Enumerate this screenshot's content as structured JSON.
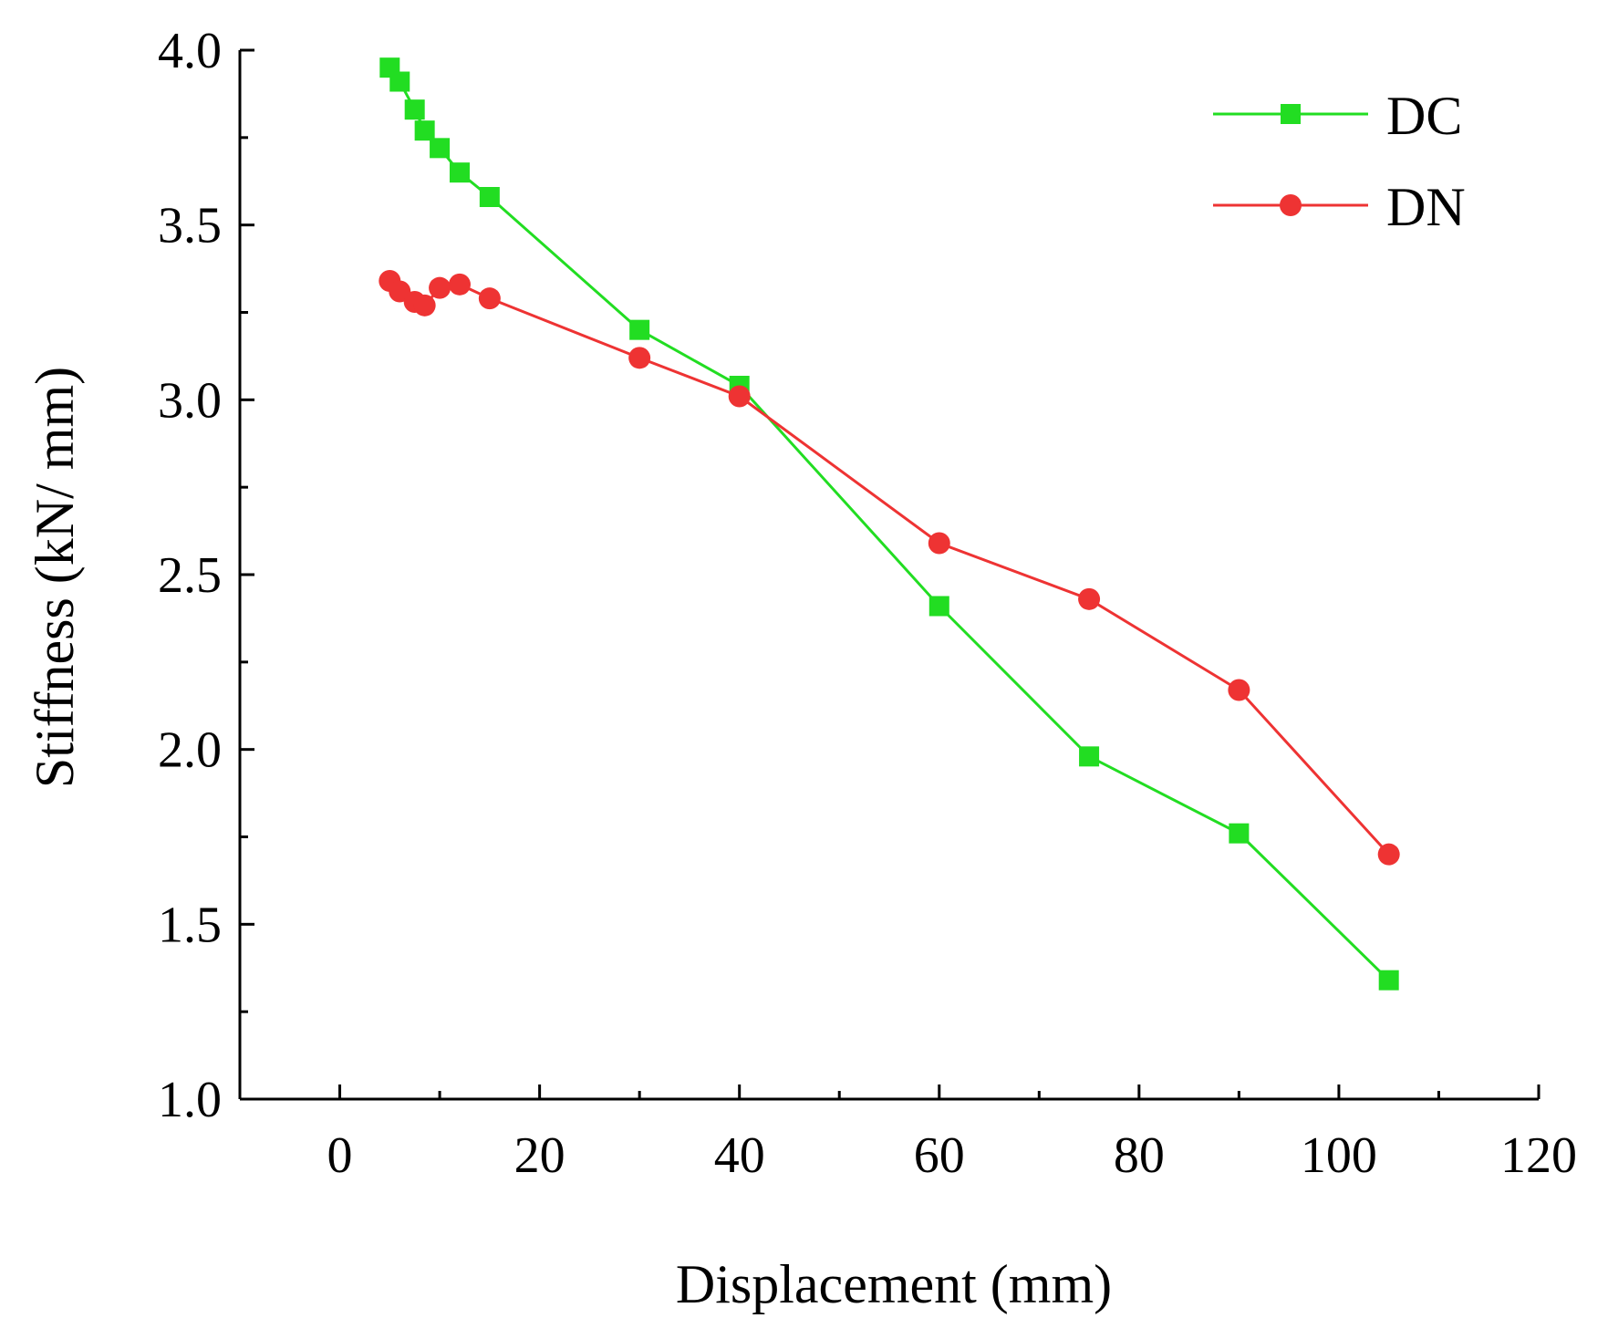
{
  "chart_data": {
    "type": "line",
    "title": "",
    "xlabel": "Displacement (mm)",
    "ylabel": "Stiffness (kN/ mm)",
    "xlim": [
      -10,
      120
    ],
    "ylim": [
      1.0,
      4.0
    ],
    "xticks": [
      0,
      20,
      40,
      60,
      80,
      100,
      120
    ],
    "xtick_labels": [
      "0",
      "20",
      "40",
      "60",
      "80",
      "100",
      "120"
    ],
    "xminor": [
      -10,
      10,
      30,
      50,
      70,
      90,
      110
    ],
    "yticks": [
      1.0,
      1.5,
      2.0,
      2.5,
      3.0,
      3.5,
      4.0
    ],
    "ytick_labels": [
      "1.0",
      "1.5",
      "2.0",
      "2.5",
      "3.0",
      "3.5",
      "4.0"
    ],
    "grid": false,
    "legend_position": "top-right",
    "series": [
      {
        "name": "DC",
        "color": "#22dd22",
        "marker": "square",
        "x": [
          5,
          6,
          7.5,
          8.5,
          10,
          12,
          15,
          30,
          40,
          60,
          75,
          90,
          105
        ],
        "y": [
          3.95,
          3.91,
          3.83,
          3.77,
          3.72,
          3.65,
          3.58,
          3.2,
          3.04,
          2.41,
          1.98,
          1.76,
          1.34
        ]
      },
      {
        "name": "DN",
        "color": "#ee3333",
        "marker": "circle",
        "x": [
          5,
          6,
          7.5,
          8.5,
          10,
          12,
          15,
          30,
          40,
          60,
          75,
          90,
          105
        ],
        "y": [
          3.34,
          3.31,
          3.28,
          3.27,
          3.32,
          3.33,
          3.29,
          3.12,
          3.01,
          2.59,
          2.43,
          2.17,
          1.7
        ]
      }
    ]
  }
}
